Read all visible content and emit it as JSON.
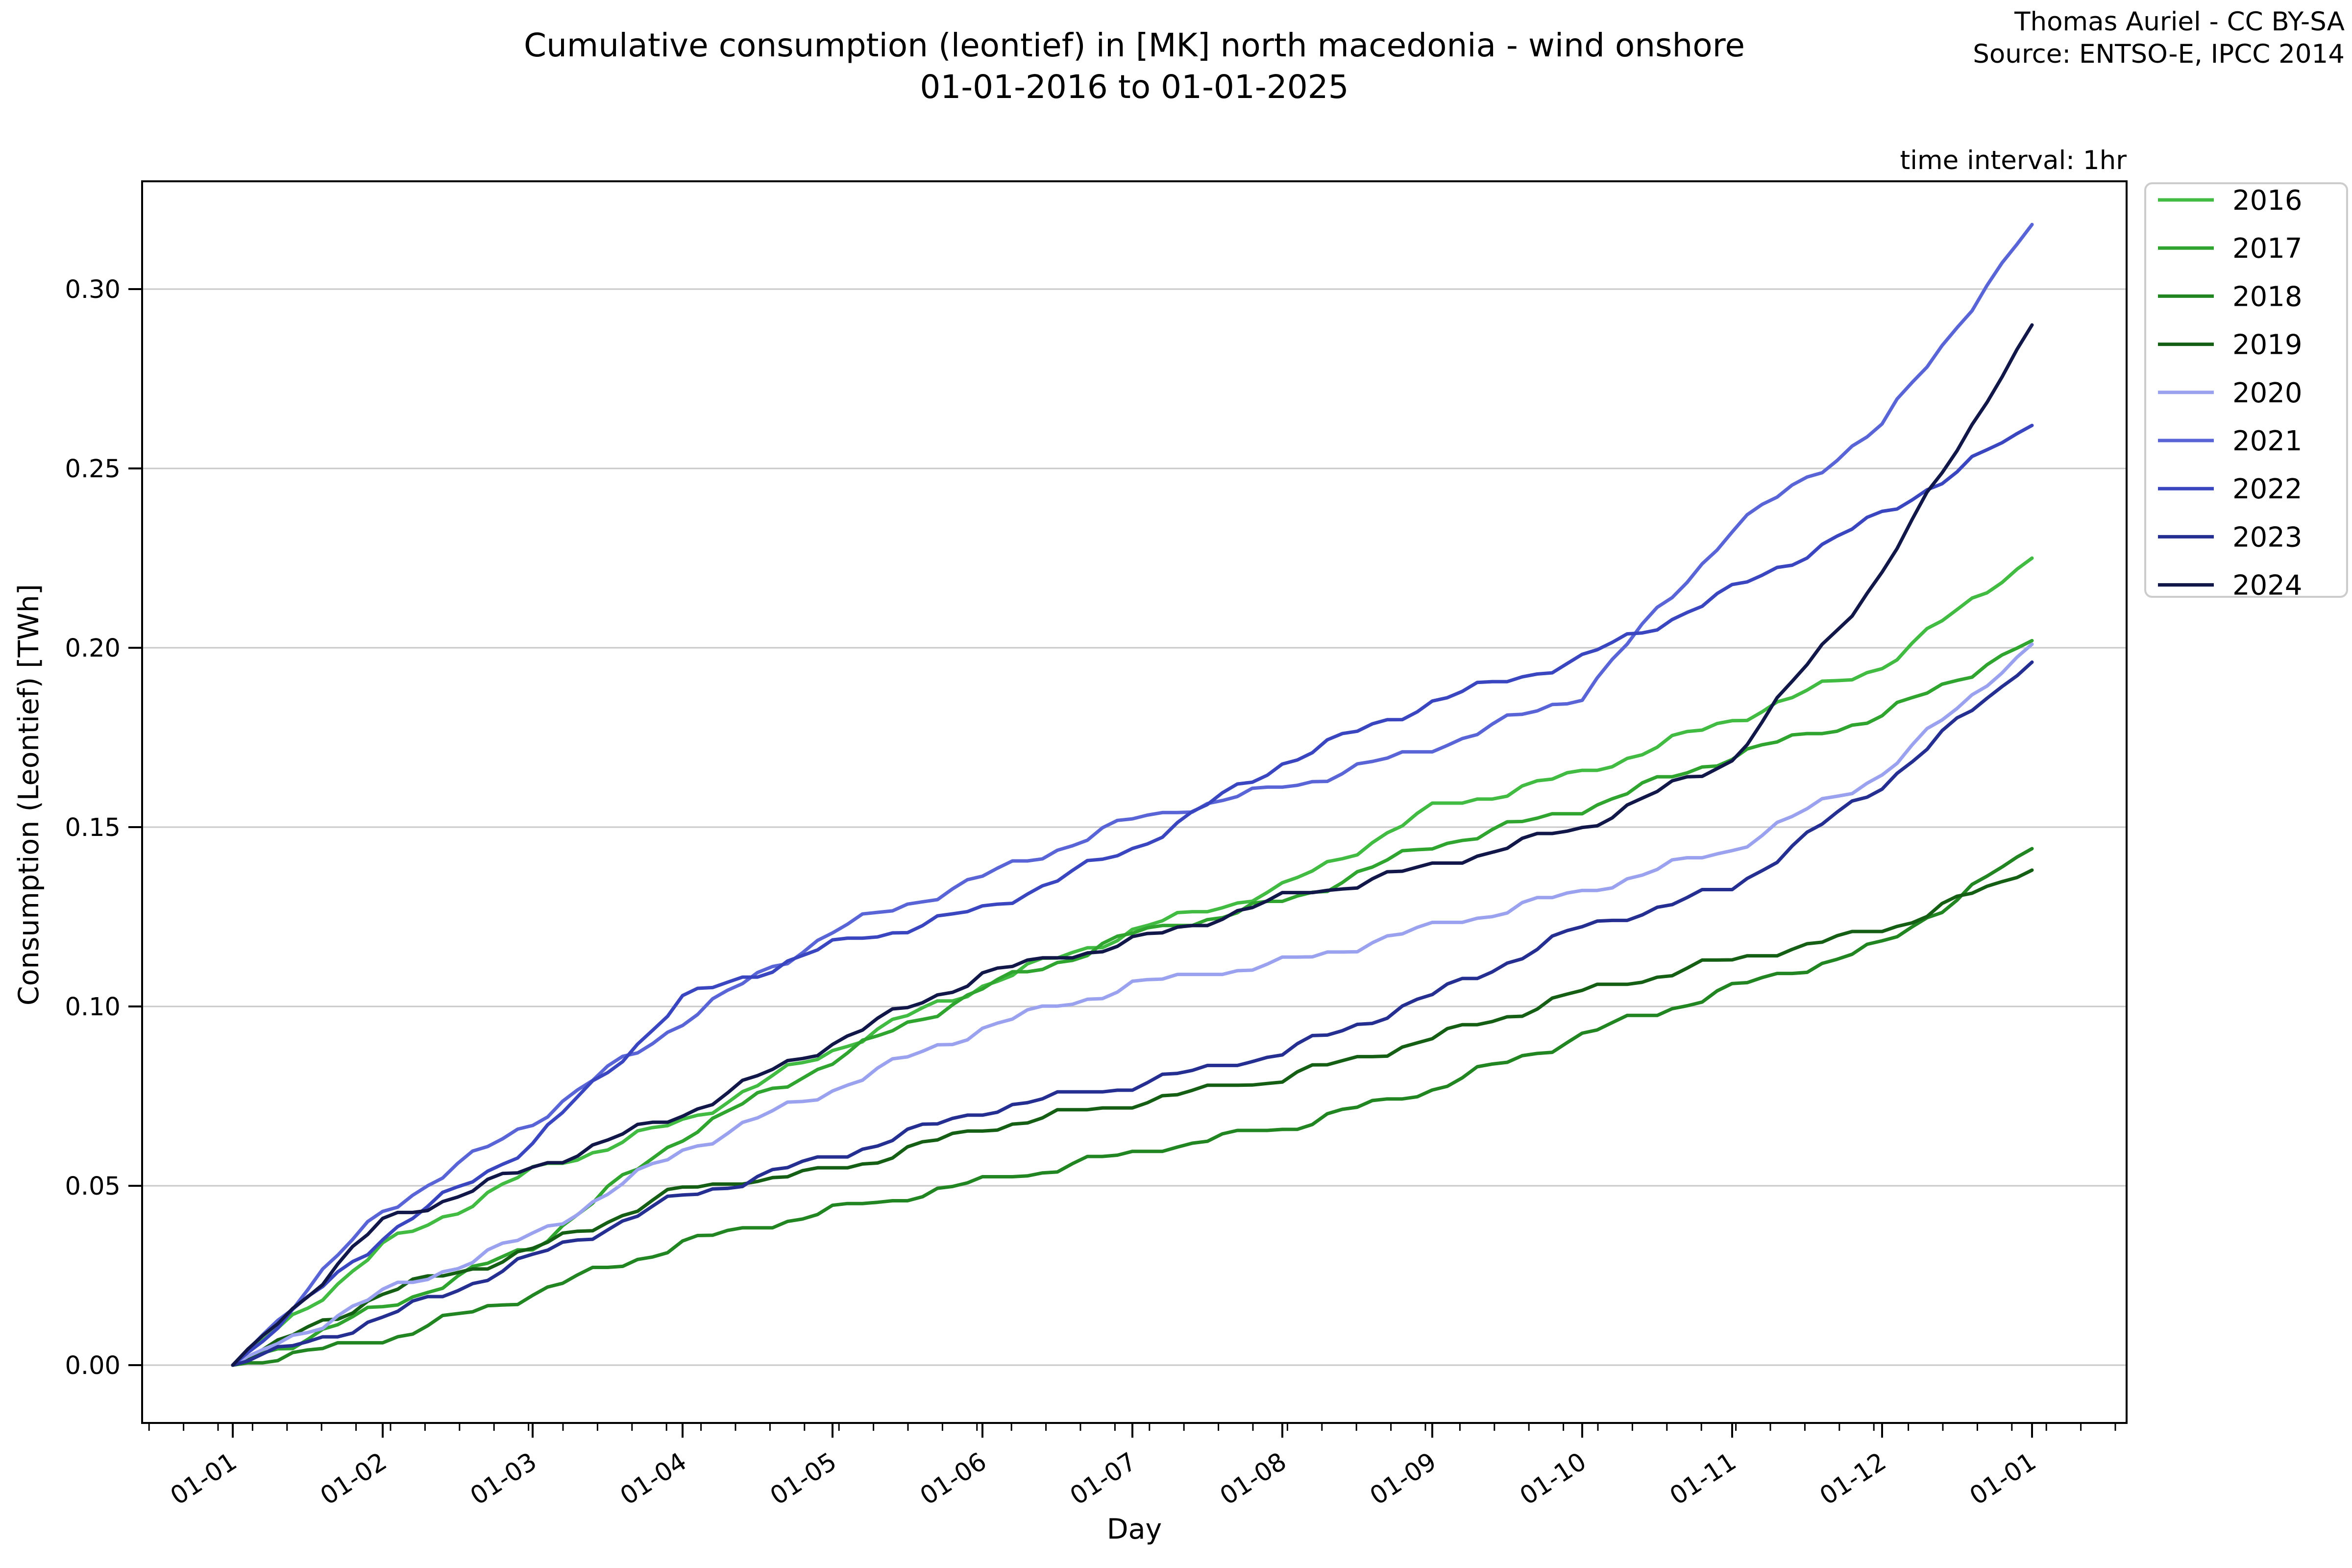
{
  "title": {
    "line1": "Cumulative consumption (leontief) in [MK] north macedonia - wind onshore",
    "line2": "01-01-2016 to 01-01-2025"
  },
  "credit": {
    "line1": "Thomas Auriel - CC BY-SA",
    "line2": "Source: ENTSO-E, IPCC 2014"
  },
  "annotation": "time interval: 1hr",
  "chart_data": {
    "type": "line",
    "title": "Cumulative consumption (leontief) in [MK] north macedonia - wind onshore 01-01-2016 to 01-01-2025",
    "xlabel": "Day",
    "ylabel": "Consumption (Leontief) [TWh]",
    "x_ticklabels": [
      "01-01",
      "01-02",
      "01-03",
      "01-04",
      "01-05",
      "01-06",
      "01-07",
      "01-08",
      "01-09",
      "01-10",
      "01-11",
      "01-12",
      "01-01"
    ],
    "y_ticks": [
      0.0,
      0.05,
      0.1,
      0.15,
      0.2,
      0.25,
      0.3
    ],
    "ylim": [
      -0.016,
      0.33
    ],
    "grid": true,
    "legend_position": "upper right outside",
    "series": [
      {
        "name": "2016",
        "color": "#41bb41",
        "values": [
          0,
          0.033,
          0.054,
          0.068,
          0.088,
          0.106,
          0.121,
          0.133,
          0.155,
          0.165,
          0.18,
          0.195,
          0.225
        ]
      },
      {
        "name": "2017",
        "color": "#2fa42f",
        "values": [
          0,
          0.016,
          0.033,
          0.064,
          0.085,
          0.105,
          0.12,
          0.129,
          0.145,
          0.155,
          0.17,
          0.181,
          0.202
        ]
      },
      {
        "name": "2018",
        "color": "#218521",
        "values": [
          0,
          0.007,
          0.02,
          0.034,
          0.043,
          0.051,
          0.059,
          0.066,
          0.077,
          0.092,
          0.105,
          0.117,
          0.144
        ]
      },
      {
        "name": "2019",
        "color": "#155f15",
        "values": [
          0,
          0.02,
          0.032,
          0.049,
          0.054,
          0.066,
          0.073,
          0.08,
          0.091,
          0.104,
          0.113,
          0.121,
          0.138
        ]
      },
      {
        "name": "2020",
        "color": "#9aa1ee",
        "values": [
          0,
          0.02,
          0.036,
          0.06,
          0.077,
          0.094,
          0.106,
          0.112,
          0.122,
          0.132,
          0.144,
          0.165,
          0.201
        ]
      },
      {
        "name": "2021",
        "color": "#5964d6",
        "values": [
          0,
          0.043,
          0.068,
          0.096,
          0.121,
          0.136,
          0.152,
          0.161,
          0.172,
          0.187,
          0.233,
          0.262,
          0.318
        ]
      },
      {
        "name": "2022",
        "color": "#3a45c0",
        "values": [
          0,
          0.036,
          0.062,
          0.102,
          0.117,
          0.127,
          0.144,
          0.168,
          0.185,
          0.197,
          0.216,
          0.237,
          0.262
        ]
      },
      {
        "name": "2023",
        "color": "#252e91",
        "values": [
          0,
          0.013,
          0.03,
          0.047,
          0.058,
          0.071,
          0.078,
          0.087,
          0.103,
          0.122,
          0.133,
          0.162,
          0.196
        ]
      },
      {
        "name": "2024",
        "color": "#111849",
        "values": [
          0,
          0.04,
          0.055,
          0.07,
          0.09,
          0.109,
          0.118,
          0.13,
          0.139,
          0.15,
          0.169,
          0.221,
          0.29
        ]
      }
    ]
  }
}
